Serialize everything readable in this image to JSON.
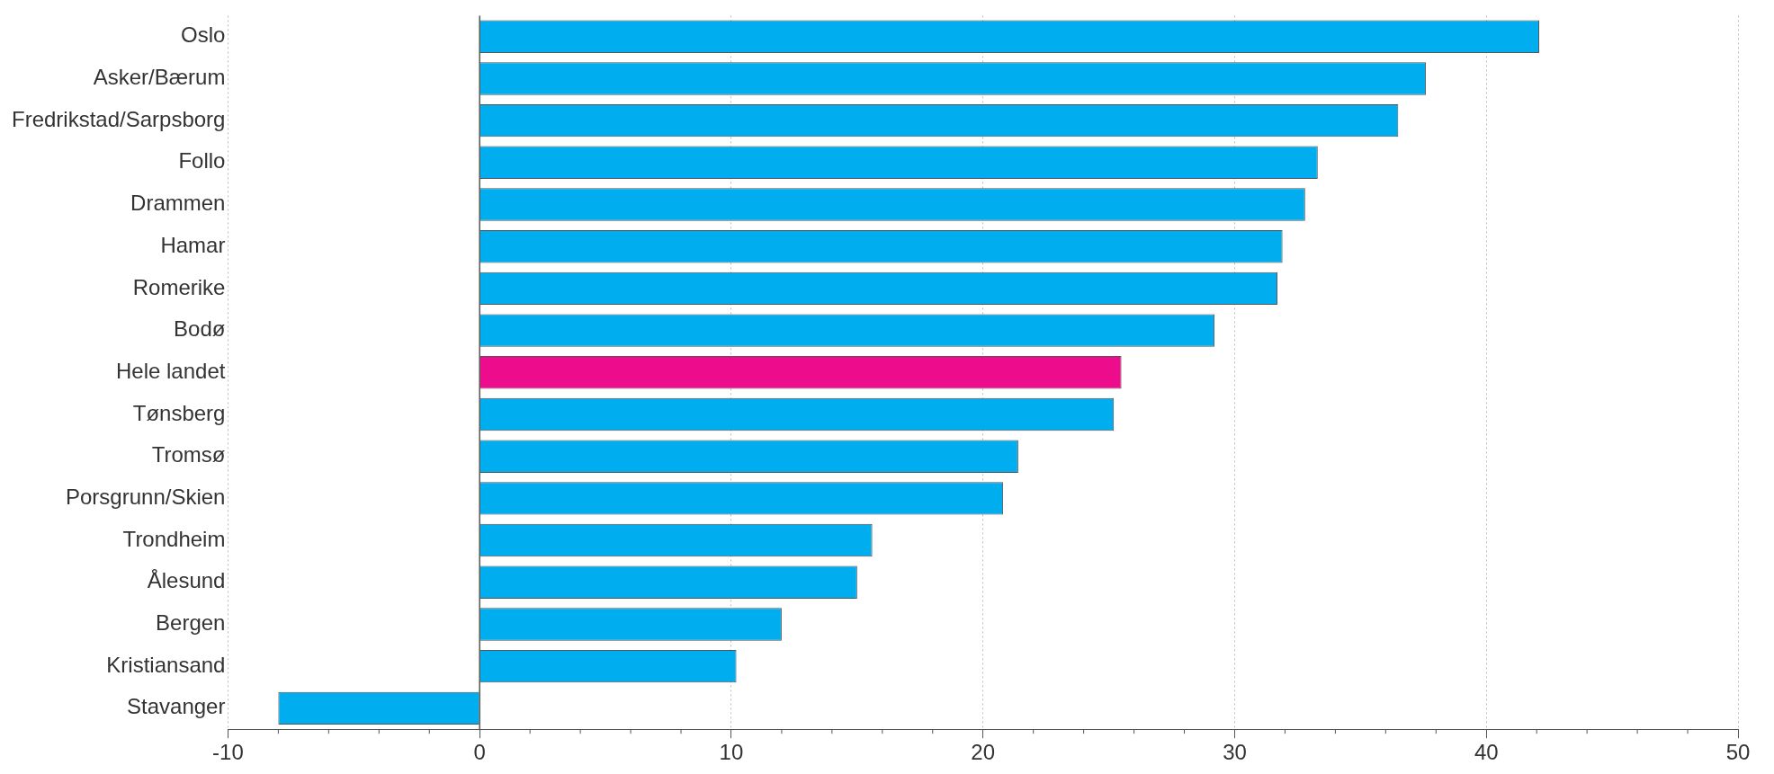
{
  "chart_data": {
    "type": "bar",
    "orientation": "horizontal",
    "categories": [
      "Oslo",
      "Asker/Bærum",
      "Fredrikstad/Sarpsborg",
      "Follo",
      "Drammen",
      "Hamar",
      "Romerike",
      "Bodø",
      "Hele landet",
      "Tønsberg",
      "Tromsø",
      "Porsgrunn/Skien",
      "Trondheim",
      "Ålesund",
      "Bergen",
      "Kristiansand",
      "Stavanger"
    ],
    "values": [
      42.1,
      37.6,
      36.5,
      33.3,
      32.8,
      31.9,
      31.7,
      29.2,
      25.5,
      25.2,
      21.4,
      20.8,
      15.6,
      15.0,
      12.0,
      10.2,
      -8.0
    ],
    "colors": [
      "#00adef",
      "#00adef",
      "#00adef",
      "#00adef",
      "#00adef",
      "#00adef",
      "#00adef",
      "#00adef",
      "#ec0c8c",
      "#00adef",
      "#00adef",
      "#00adef",
      "#00adef",
      "#00adef",
      "#00adef",
      "#00adef",
      "#00adef"
    ],
    "xlim": [
      -10,
      50
    ],
    "xticks": [
      -10,
      0,
      10,
      20,
      30,
      40,
      50
    ],
    "grid": "x",
    "legend": false
  }
}
